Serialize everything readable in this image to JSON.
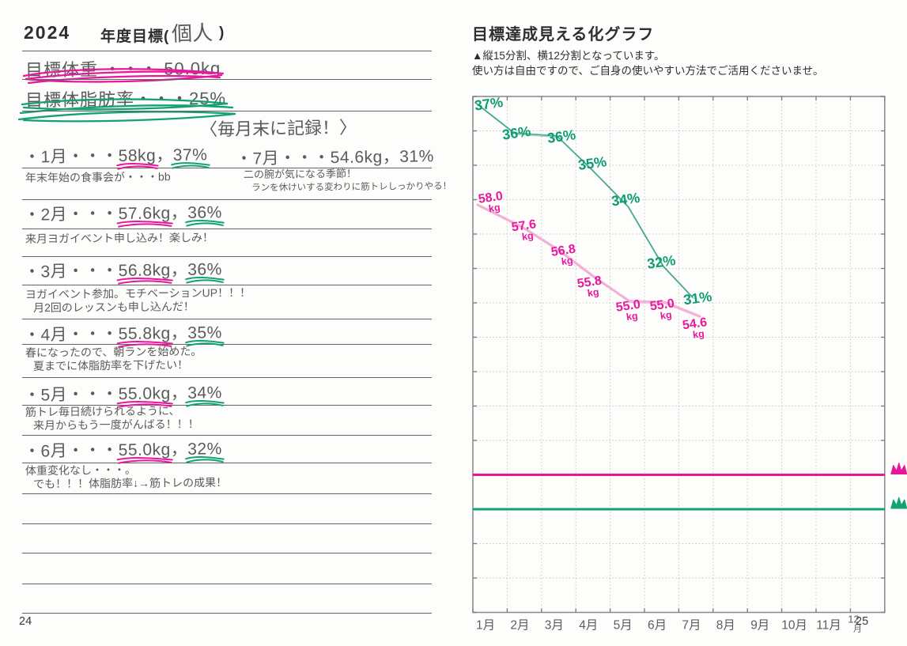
{
  "page_left": {
    "year": "2024",
    "form_title_prefix": "年度目標(",
    "form_title_name": "個人",
    "form_title_suffix": ")",
    "goal_weight": "目標体重 ・・・ 50.0kg",
    "goal_bodyfat": "目標体脂肪率・・・25%",
    "record_note": "〈毎月末に記録！〉",
    "entries": [
      {
        "label": "・1月・・・",
        "weight": "58kg",
        "fat": "37%",
        "underlined": true,
        "comments": [
          "年末年始の食事会が・・・bb"
        ]
      },
      {
        "label": "・2月・・・",
        "weight": "57.6kg",
        "fat": "36%",
        "underlined": true,
        "comments": [
          "来月ヨガイベント申し込み！楽しみ！"
        ]
      },
      {
        "label": "・3月・・・",
        "weight": "56.8kg",
        "fat": "36%",
        "underlined": true,
        "comments": [
          "ヨガイベント参加。モチベーションUP！！！",
          "月2回のレッスンも申し込んだ！"
        ]
      },
      {
        "label": "・4月・・・",
        "weight": "55.8kg",
        "fat": "35%",
        "underlined": true,
        "comments": [
          "春になったので、朝ランを始めた。",
          "夏までに体脂肪率を下げたい！"
        ]
      },
      {
        "label": "・5月・・・",
        "weight": "55.0kg",
        "fat": "34%",
        "underlined": true,
        "comments": [
          "筋トレ毎日続けられるように、",
          "来月からもう一度がんばる！！！"
        ]
      },
      {
        "label": "・6月・・・",
        "weight": "55.0kg",
        "fat": "32%",
        "underlined": true,
        "comments": [
          "体重変化なし・・・。",
          "でも！！！体脂肪率↓→筋トレの成果！"
        ]
      },
      {
        "label": "・7月・・・",
        "weight": "54.6kg",
        "fat": "31%",
        "underlined": false,
        "comments": [
          "二の腕が気になる季節！",
          "ランを休けいする変わりに筋トレしっかりやる！"
        ]
      }
    ],
    "page_number": "24"
  },
  "page_right": {
    "title": "目標達成見える化グラフ",
    "usage_notes": [
      "▲縦15分割、横12分割となっています。",
      "使い方は自由ですので、ご自身の使いやすい方法でご活用くださいませ。"
    ],
    "page_number": "25"
  },
  "chart_data": {
    "type": "line",
    "title": "目標達成見える化グラフ",
    "x_categories": [
      "1月",
      "2月",
      "3月",
      "4月",
      "5月",
      "6月",
      "7月",
      "8月",
      "9月",
      "10月",
      "11月",
      "12月"
    ],
    "grid": {
      "cols": 12,
      "rows": 15
    },
    "series": [
      {
        "id": "body-fat",
        "name": "体脂肪率",
        "unit": "%",
        "line_color": "#2ea184",
        "label_color": "#0f9c74",
        "line_width": 1.8,
        "x": [
          "1月",
          "2月",
          "3月",
          "4月",
          "5月",
          "6月",
          "7月"
        ],
        "values": [
          37,
          36,
          36,
          35,
          34,
          32,
          31
        ],
        "labels": [
          "37%",
          "36%",
          "36%",
          "35%",
          "34%",
          "32%",
          "31%"
        ],
        "points_colrow": [
          [
            0.1,
            0.2
          ],
          [
            1.2,
            1.06
          ],
          [
            2.45,
            1.15
          ],
          [
            3.48,
            2.14
          ],
          [
            4.52,
            3.2
          ],
          [
            5.55,
            4.94
          ],
          [
            6.4,
            5.84
          ]
        ],
        "label_pos_colrow": [
          [
            0.48,
            0.35
          ],
          [
            1.29,
            1.2
          ],
          [
            2.6,
            1.3
          ],
          [
            3.5,
            2.08
          ],
          [
            4.47,
            3.13
          ],
          [
            5.51,
            4.95
          ],
          [
            6.57,
            6.0
          ]
        ]
      },
      {
        "id": "weight",
        "name": "体重",
        "unit": "kg",
        "line_color": "#f2a8d3",
        "label_color": "#e8189c",
        "line_width": 3.2,
        "x": [
          "1月",
          "2月",
          "3月",
          "4月",
          "5月",
          "6月",
          "7月"
        ],
        "values": [
          58.0,
          57.6,
          56.8,
          55.8,
          55.0,
          55.0,
          54.6
        ],
        "labels": [
          "58.0",
          "57.6",
          "56.8",
          "55.8",
          "55.0",
          "55.0",
          "54.6"
        ],
        "points_colrow": [
          [
            0.14,
            3.15
          ],
          [
            1.43,
            3.79
          ],
          [
            2.49,
            4.46
          ],
          [
            3.55,
            5.26
          ],
          [
            4.56,
            5.95
          ],
          [
            5.58,
            5.98
          ],
          [
            6.61,
            6.39
          ]
        ],
        "label_pos_colrow": [
          [
            0.53,
            3.05
          ],
          [
            1.5,
            3.87
          ],
          [
            2.65,
            4.59
          ],
          [
            3.41,
            5.51
          ],
          [
            4.54,
            6.2
          ],
          [
            5.53,
            6.17
          ],
          [
            6.48,
            6.72
          ]
        ]
      }
    ],
    "target_lines": [
      {
        "id": "weight-goal",
        "label": "50.0kg",
        "row": 11,
        "color": "#e7179a"
      },
      {
        "id": "body-fat-goal",
        "label": "25%",
        "row": 12,
        "color": "#12a275"
      }
    ],
    "legend_position": "none",
    "grid_style": "dotted"
  },
  "colors": {
    "pink": "#e8189c",
    "green": "#12a176",
    "ink": "#5a5a5a",
    "printed": "#2e2e2e",
    "rule": "#636363",
    "grid_line": "#c9c9c9",
    "grid_border": "#8f8f8f",
    "paper": "#fdfdfb"
  }
}
